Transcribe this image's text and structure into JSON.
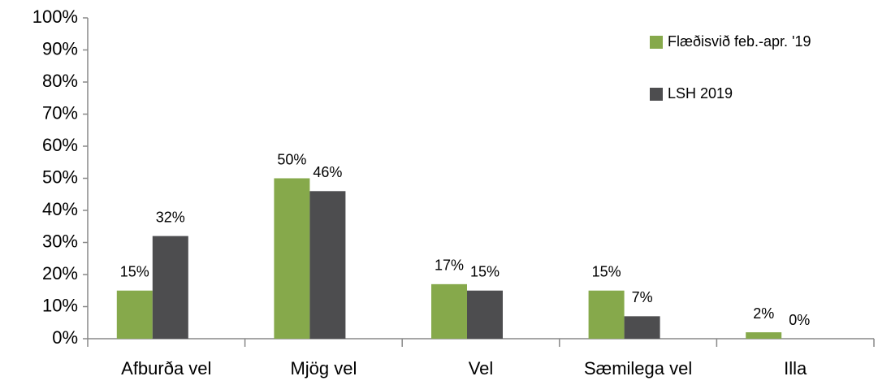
{
  "chart_data": {
    "type": "bar",
    "categories": [
      "Afburða vel",
      "Mjög vel",
      "Vel",
      "Sæmilega vel",
      "Illa"
    ],
    "series": [
      {
        "name": "Flæðisvið feb.-apr. '19",
        "color": "#86a94b",
        "values": [
          15,
          50,
          17,
          15,
          2
        ],
        "value_labels": [
          "15%",
          "50%",
          "17%",
          "15%",
          "2%"
        ]
      },
      {
        "name": "LSH 2019",
        "color": "#4d4d4f",
        "values": [
          32,
          46,
          15,
          7,
          0
        ],
        "value_labels": [
          "32%",
          "46%",
          "15%",
          "7%",
          "0%"
        ]
      }
    ],
    "ylim": [
      0,
      100
    ],
    "yticks": [
      {
        "value": 0,
        "label": "0%"
      },
      {
        "value": 10,
        "label": "10%"
      },
      {
        "value": 20,
        "label": "20%"
      },
      {
        "value": 30,
        "label": "30%"
      },
      {
        "value": 40,
        "label": "40%"
      },
      {
        "value": 50,
        "label": "50%"
      },
      {
        "value": 60,
        "label": "60%"
      },
      {
        "value": 70,
        "label": "70%"
      },
      {
        "value": 80,
        "label": "80%"
      },
      {
        "value": 90,
        "label": "90%"
      },
      {
        "value": 100,
        "label": "100%"
      }
    ],
    "legend": "upper right",
    "grid": false
  }
}
